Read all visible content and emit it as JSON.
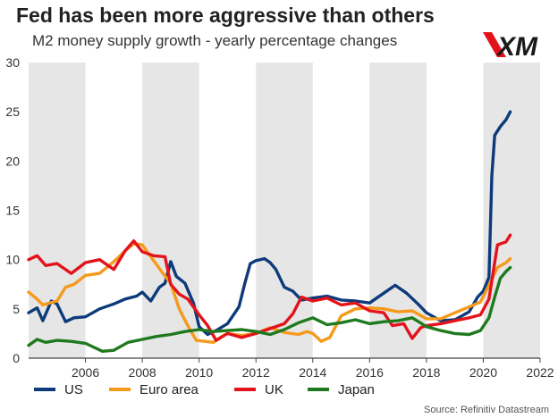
{
  "header": {
    "title": "Fed has been more aggressive than others",
    "subtitle": "M2 money supply growth - yearly percentage changes",
    "logo_text": "XM"
  },
  "footer": {
    "source": "Source: Refinitiv Datastream"
  },
  "colors": {
    "band": "#e6e6e6",
    "axis": "#444444",
    "US": "#0d3a7a",
    "Euro area": "#f59a1b",
    "UK": "#e3131b",
    "Japan": "#1f7a1f",
    "logo_red": "#e3131b",
    "logo_dark": "#1a1a1a"
  },
  "chart_data": {
    "type": "line",
    "title": "Fed has been more aggressive than others",
    "subtitle": "M2 money supply growth - yearly percentage changes",
    "xlabel": "",
    "ylabel": "",
    "xlim": [
      2004.0,
      2022.0
    ],
    "ylim": [
      0,
      30
    ],
    "x_ticks": [
      2006,
      2008,
      2010,
      2012,
      2014,
      2016,
      2018,
      2020,
      2022
    ],
    "x_tick_labels": [
      "2006",
      "2008",
      "2010",
      "2012",
      "2014",
      "2016",
      "2018",
      "2020",
      "2022"
    ],
    "y_ticks": [
      0,
      5,
      10,
      15,
      20,
      25,
      30
    ],
    "y_tick_labels": [
      "0",
      "5",
      "10",
      "15",
      "20",
      "25",
      "30"
    ],
    "shaded_bands": [
      [
        2004,
        2006
      ],
      [
        2008,
        2010
      ],
      [
        2012,
        2014
      ],
      [
        2016,
        2018
      ],
      [
        2020,
        2022
      ]
    ],
    "grid": false,
    "legend_position": "bottom",
    "series": [
      {
        "name": "US",
        "points": [
          [
            2004.0,
            4.6
          ],
          [
            2004.3,
            5.1
          ],
          [
            2004.5,
            3.8
          ],
          [
            2004.8,
            5.8
          ],
          [
            2005.0,
            5.5
          ],
          [
            2005.3,
            3.7
          ],
          [
            2005.6,
            4.1
          ],
          [
            2006.0,
            4.2
          ],
          [
            2006.5,
            5.0
          ],
          [
            2007.0,
            5.5
          ],
          [
            2007.4,
            6.0
          ],
          [
            2007.8,
            6.3
          ],
          [
            2008.0,
            6.7
          ],
          [
            2008.3,
            5.8
          ],
          [
            2008.6,
            7.2
          ],
          [
            2008.8,
            7.6
          ],
          [
            2009.0,
            9.8
          ],
          [
            2009.2,
            8.3
          ],
          [
            2009.5,
            7.6
          ],
          [
            2009.8,
            5.6
          ],
          [
            2010.0,
            3.2
          ],
          [
            2010.3,
            2.4
          ],
          [
            2010.6,
            2.8
          ],
          [
            2011.0,
            3.5
          ],
          [
            2011.4,
            5.2
          ],
          [
            2011.6,
            7.5
          ],
          [
            2011.8,
            9.6
          ],
          [
            2012.0,
            9.9
          ],
          [
            2012.3,
            10.1
          ],
          [
            2012.5,
            9.7
          ],
          [
            2012.7,
            9.0
          ],
          [
            2013.0,
            7.2
          ],
          [
            2013.3,
            6.8
          ],
          [
            2013.6,
            5.9
          ],
          [
            2014.0,
            6.1
          ],
          [
            2014.5,
            6.3
          ],
          [
            2015.0,
            5.9
          ],
          [
            2015.5,
            5.8
          ],
          [
            2016.0,
            5.6
          ],
          [
            2016.5,
            6.6
          ],
          [
            2016.9,
            7.4
          ],
          [
            2017.3,
            6.6
          ],
          [
            2017.7,
            5.5
          ],
          [
            2018.0,
            4.6
          ],
          [
            2018.5,
            3.8
          ],
          [
            2019.0,
            3.9
          ],
          [
            2019.5,
            4.7
          ],
          [
            2019.8,
            6.2
          ],
          [
            2020.0,
            6.8
          ],
          [
            2020.2,
            8.2
          ],
          [
            2020.3,
            18.5
          ],
          [
            2020.4,
            22.6
          ],
          [
            2020.6,
            23.5
          ],
          [
            2020.8,
            24.2
          ],
          [
            2020.95,
            25.0
          ]
        ]
      },
      {
        "name": "Euro area",
        "points": [
          [
            2004.0,
            6.7
          ],
          [
            2004.3,
            6.0
          ],
          [
            2004.5,
            5.4
          ],
          [
            2005.0,
            5.8
          ],
          [
            2005.3,
            7.2
          ],
          [
            2005.6,
            7.5
          ],
          [
            2006.0,
            8.4
          ],
          [
            2006.5,
            8.6
          ],
          [
            2007.0,
            9.8
          ],
          [
            2007.4,
            10.9
          ],
          [
            2007.7,
            11.6
          ],
          [
            2008.0,
            11.5
          ],
          [
            2008.4,
            9.9
          ],
          [
            2008.7,
            8.7
          ],
          [
            2009.0,
            7.6
          ],
          [
            2009.3,
            5.0
          ],
          [
            2009.6,
            3.3
          ],
          [
            2009.9,
            1.8
          ],
          [
            2010.2,
            1.7
          ],
          [
            2010.5,
            1.6
          ],
          [
            2010.8,
            2.2
          ],
          [
            2011.0,
            2.5
          ],
          [
            2011.5,
            2.3
          ],
          [
            2012.0,
            2.5
          ],
          [
            2012.5,
            3.1
          ],
          [
            2013.0,
            2.6
          ],
          [
            2013.5,
            2.4
          ],
          [
            2013.8,
            2.7
          ],
          [
            2014.0,
            2.5
          ],
          [
            2014.3,
            1.7
          ],
          [
            2014.6,
            2.1
          ],
          [
            2015.0,
            4.3
          ],
          [
            2015.5,
            5.0
          ],
          [
            2016.0,
            5.1
          ],
          [
            2016.5,
            5.0
          ],
          [
            2017.0,
            4.7
          ],
          [
            2017.5,
            4.8
          ],
          [
            2018.0,
            4.0
          ],
          [
            2018.5,
            4.0
          ],
          [
            2019.0,
            4.6
          ],
          [
            2019.5,
            5.2
          ],
          [
            2019.9,
            5.7
          ],
          [
            2020.2,
            7.4
          ],
          [
            2020.5,
            9.2
          ],
          [
            2020.8,
            9.7
          ],
          [
            2020.95,
            10.1
          ]
        ]
      },
      {
        "name": "UK",
        "points": [
          [
            2004.0,
            10.0
          ],
          [
            2004.3,
            10.4
          ],
          [
            2004.6,
            9.4
          ],
          [
            2005.0,
            9.6
          ],
          [
            2005.5,
            8.6
          ],
          [
            2006.0,
            9.7
          ],
          [
            2006.5,
            10.0
          ],
          [
            2007.0,
            9.0
          ],
          [
            2007.4,
            10.9
          ],
          [
            2007.7,
            11.9
          ],
          [
            2008.0,
            10.8
          ],
          [
            2008.4,
            10.4
          ],
          [
            2008.8,
            10.3
          ],
          [
            2009.0,
            7.5
          ],
          [
            2009.3,
            6.5
          ],
          [
            2009.6,
            6.0
          ],
          [
            2010.0,
            4.4
          ],
          [
            2010.3,
            3.3
          ],
          [
            2010.6,
            1.8
          ],
          [
            2011.0,
            2.5
          ],
          [
            2011.5,
            2.1
          ],
          [
            2012.0,
            2.5
          ],
          [
            2012.5,
            3.0
          ],
          [
            2013.0,
            3.5
          ],
          [
            2013.3,
            4.5
          ],
          [
            2013.6,
            6.2
          ],
          [
            2014.0,
            5.8
          ],
          [
            2014.5,
            6.1
          ],
          [
            2015.0,
            5.4
          ],
          [
            2015.5,
            5.6
          ],
          [
            2016.0,
            4.8
          ],
          [
            2016.5,
            4.6
          ],
          [
            2016.8,
            3.3
          ],
          [
            2017.2,
            3.5
          ],
          [
            2017.5,
            2.0
          ],
          [
            2017.8,
            3.1
          ],
          [
            2018.0,
            3.3
          ],
          [
            2018.5,
            3.5
          ],
          [
            2019.0,
            3.8
          ],
          [
            2019.5,
            4.1
          ],
          [
            2019.9,
            4.4
          ],
          [
            2020.2,
            6.0
          ],
          [
            2020.5,
            11.5
          ],
          [
            2020.8,
            11.8
          ],
          [
            2020.95,
            12.5
          ]
        ]
      },
      {
        "name": "Japan",
        "points": [
          [
            2004.0,
            1.3
          ],
          [
            2004.3,
            1.9
          ],
          [
            2004.6,
            1.6
          ],
          [
            2005.0,
            1.8
          ],
          [
            2005.5,
            1.7
          ],
          [
            2006.0,
            1.5
          ],
          [
            2006.3,
            1.1
          ],
          [
            2006.6,
            0.7
          ],
          [
            2007.0,
            0.8
          ],
          [
            2007.5,
            1.6
          ],
          [
            2008.0,
            1.9
          ],
          [
            2008.5,
            2.2
          ],
          [
            2009.0,
            2.4
          ],
          [
            2009.5,
            2.7
          ],
          [
            2010.0,
            2.9
          ],
          [
            2010.5,
            2.7
          ],
          [
            2011.0,
            2.8
          ],
          [
            2011.5,
            2.9
          ],
          [
            2012.0,
            2.7
          ],
          [
            2012.5,
            2.4
          ],
          [
            2013.0,
            2.9
          ],
          [
            2013.5,
            3.6
          ],
          [
            2014.0,
            4.1
          ],
          [
            2014.5,
            3.4
          ],
          [
            2015.0,
            3.6
          ],
          [
            2015.5,
            3.9
          ],
          [
            2016.0,
            3.5
          ],
          [
            2016.5,
            3.7
          ],
          [
            2017.0,
            3.8
          ],
          [
            2017.5,
            4.1
          ],
          [
            2018.0,
            3.2
          ],
          [
            2018.5,
            2.8
          ],
          [
            2019.0,
            2.5
          ],
          [
            2019.5,
            2.4
          ],
          [
            2019.9,
            2.8
          ],
          [
            2020.2,
            4.1
          ],
          [
            2020.4,
            6.2
          ],
          [
            2020.6,
            8.1
          ],
          [
            2020.8,
            8.8
          ],
          [
            2020.95,
            9.2
          ]
        ]
      }
    ]
  }
}
